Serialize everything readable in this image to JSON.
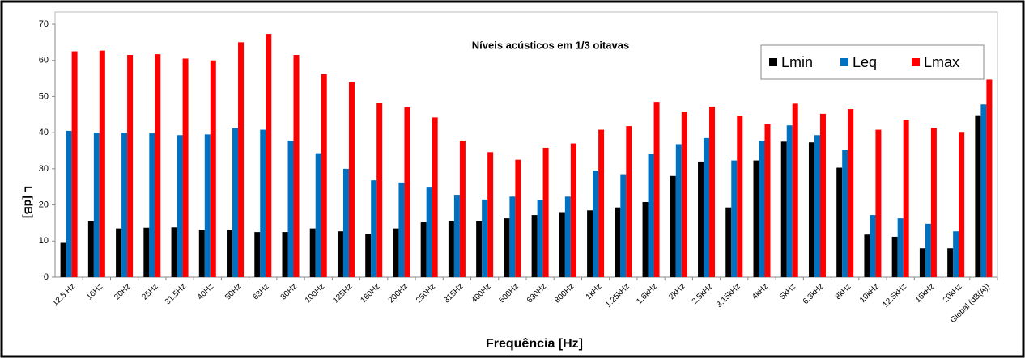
{
  "chart_data": {
    "type": "bar",
    "title": "Níveis acústicos em 1/3 oitavas",
    "x_label": "Frequência [Hz]",
    "y_label": "L [dB]",
    "categories": [
      "12.5 Hz",
      "16Hz",
      "20Hz",
      "25Hz",
      "31.5Hz",
      "40Hz",
      "50Hz",
      "63Hz",
      "80Hz",
      "100Hz",
      "125Hz",
      "160Hz",
      "200Hz",
      "250Hz",
      "315Hz",
      "400Hz",
      "500Hz",
      "630Hz",
      "800Hz",
      "1kHz",
      "1.25kHz",
      "1.6kHz",
      "2kHz",
      "2.5kHz",
      "3.15kHz",
      "4kHz",
      "5kHz",
      "6.3kHz",
      "8kHz",
      "10kHz",
      "12.5kHz",
      "16kHz",
      "20kHz",
      "Global (dB(A))"
    ],
    "series": [
      {
        "name": "Lmin",
        "color": "#000000",
        "values": [
          9.5,
          15.5,
          13.5,
          13.7,
          13.8,
          13.1,
          13.2,
          12.5,
          12.5,
          13.5,
          12.7,
          12,
          13.5,
          15.2,
          15.5,
          15.5,
          16.3,
          17.2,
          18,
          18.5,
          19.3,
          20.8,
          28,
          32,
          19.3,
          32.3,
          37.5,
          37.3,
          30.3,
          11.8,
          11.2,
          8,
          8,
          44.8
        ]
      },
      {
        "name": "Leq",
        "color": "#0070c0",
        "values": [
          40.5,
          40,
          40,
          39.8,
          39.3,
          39.5,
          41.2,
          40.8,
          37.8,
          34.3,
          30,
          26.8,
          26.2,
          24.8,
          22.8,
          21.5,
          22.3,
          21.3,
          22.3,
          29.5,
          28.5,
          34,
          36.8,
          38.5,
          32.3,
          37.8,
          42,
          39.3,
          35.3,
          17.2,
          16.3,
          14.8,
          12.7,
          47.8
        ]
      },
      {
        "name": "Lmax",
        "color": "#ff0000",
        "values": [
          62.5,
          62.7,
          61.5,
          61.7,
          60.5,
          60,
          65,
          67.3,
          61.5,
          56.2,
          54,
          48.2,
          47,
          44.2,
          37.8,
          34.6,
          32.5,
          35.8,
          37,
          40.8,
          41.8,
          48.5,
          45.8,
          47.2,
          44.7,
          42.3,
          48,
          45.2,
          46.5,
          40.8,
          43.5,
          41.3,
          40.2,
          54.7
        ]
      }
    ],
    "ylim": [
      0,
      70
    ],
    "yticks": [
      0,
      10,
      20,
      30,
      40,
      50,
      60,
      70
    ],
    "grid": false,
    "legend": "top-right"
  }
}
